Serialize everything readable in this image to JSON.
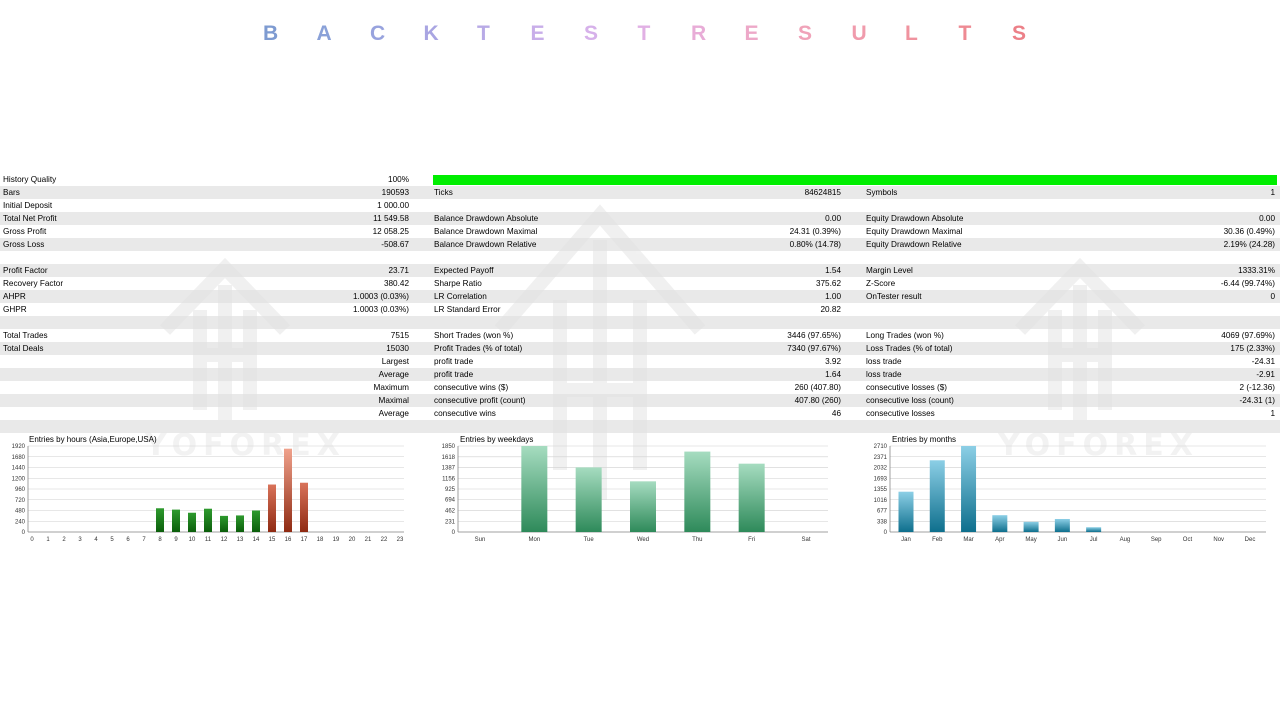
{
  "title": {
    "letters": [
      "B",
      "A",
      "C",
      "K",
      "T",
      "E",
      "S",
      "T",
      "R",
      "E",
      "S",
      "U",
      "L",
      "T",
      "S"
    ],
    "colors": [
      "#7e9bd1",
      "#8aa1d8",
      "#98a3de",
      "#a9a5e2",
      "#b8aae6",
      "#c8aee9",
      "#d6b1ea",
      "#e1b0e4",
      "#e8acd7",
      "#eda8c8",
      "#f0a3b9",
      "#f09bac",
      "#f0939f",
      "#ee8a93",
      "#ec8088"
    ]
  },
  "watermark": {
    "text": "YOFOREX"
  },
  "history_quality": {
    "label": "History Quality",
    "value": "100%",
    "level": 1.0,
    "bar_color": "#00ee00"
  },
  "report": {
    "rows": [
      {
        "shade": true,
        "c1": "Bars",
        "v1": "190593",
        "c2": "Ticks",
        "v2": "84624815",
        "c3": "Symbols",
        "v3": "1"
      },
      {
        "shade": false,
        "c1": "Initial Deposit",
        "v1": "1 000.00",
        "c2": "",
        "v2": "",
        "c3": "",
        "v3": ""
      },
      {
        "shade": true,
        "c1": "Total Net Profit",
        "v1": "11 549.58",
        "c2": "Balance Drawdown Absolute",
        "v2": "0.00",
        "c3": "Equity Drawdown Absolute",
        "v3": "0.00"
      },
      {
        "shade": false,
        "c1": "Gross Profit",
        "v1": "12 058.25",
        "c2": "Balance Drawdown Maximal",
        "v2": "24.31 (0.39%)",
        "c3": "Equity Drawdown Maximal",
        "v3": "30.36 (0.49%)"
      },
      {
        "shade": true,
        "c1": "Gross Loss",
        "v1": "-508.67",
        "c2": "Balance Drawdown Relative",
        "v2": "0.80% (14.78)",
        "c3": "Equity Drawdown Relative",
        "v3": "2.19% (24.28)"
      },
      {
        "shade": false,
        "c1": "",
        "v1": "",
        "c2": "",
        "v2": "",
        "c3": "",
        "v3": ""
      },
      {
        "shade": true,
        "c1": "Profit Factor",
        "v1": "23.71",
        "c2": "Expected Payoff",
        "v2": "1.54",
        "c3": "Margin Level",
        "v3": "1333.31%"
      },
      {
        "shade": false,
        "c1": "Recovery Factor",
        "v1": "380.42",
        "c2": "Sharpe Ratio",
        "v2": "375.62",
        "c3": "Z-Score",
        "v3": "-6.44 (99.74%)"
      },
      {
        "shade": true,
        "c1": "AHPR",
        "v1": "1.0003 (0.03%)",
        "c2": "LR Correlation",
        "v2": "1.00",
        "c3": "OnTester result",
        "v3": "0"
      },
      {
        "shade": false,
        "c1": "GHPR",
        "v1": "1.0003 (0.03%)",
        "c2": "LR Standard Error",
        "v2": "20.82",
        "c3": "",
        "v3": ""
      },
      {
        "shade": true,
        "c1": "",
        "v1": "",
        "c2": "",
        "v2": "",
        "c3": "",
        "v3": ""
      },
      {
        "shade": false,
        "c1": "Total Trades",
        "v1": "7515",
        "c2": "Short Trades (won %)",
        "v2": "3446 (97.65%)",
        "c3": "Long Trades (won %)",
        "v3": "4069 (97.69%)"
      },
      {
        "shade": true,
        "c1": "Total Deals",
        "v1": "15030",
        "c2": "Profit Trades (% of total)",
        "v2": "7340 (97.67%)",
        "c3": "Loss Trades (% of total)",
        "v3": "175 (2.33%)"
      },
      {
        "shade": false,
        "c1r": "Largest",
        "v1": "",
        "c2": "profit trade",
        "v2": "3.92",
        "c3": "loss trade",
        "v3": "-24.31"
      },
      {
        "shade": true,
        "c1r": "Average",
        "v1": "",
        "c2": "profit trade",
        "v2": "1.64",
        "c3": "loss trade",
        "v3": "-2.91"
      },
      {
        "shade": false,
        "c1r": "Maximum",
        "v1": "",
        "c2": "consecutive wins ($)",
        "v2": "260 (407.80)",
        "c3": "consecutive losses ($)",
        "v3": "2 (-12.36)"
      },
      {
        "shade": true,
        "c1r": "Maximal",
        "v1": "",
        "c2": "consecutive profit (count)",
        "v2": "407.80 (260)",
        "c3": "consecutive loss (count)",
        "v3": "-24.31 (1)"
      },
      {
        "shade": false,
        "c1r": "Average",
        "v1": "",
        "c2": "consecutive wins",
        "v2": "46",
        "c3": "consecutive losses",
        "v3": "1"
      },
      {
        "shade": true,
        "c1": "",
        "v1": "",
        "c2": "",
        "v2": "",
        "c3": "",
        "v3": ""
      }
    ]
  },
  "chart_data": [
    {
      "type": "bar",
      "title": "Entries by hours (Asia,Europe,USA)",
      "categories": [
        "0",
        "1",
        "2",
        "3",
        "4",
        "5",
        "6",
        "7",
        "8",
        "9",
        "10",
        "11",
        "12",
        "13",
        "14",
        "15",
        "16",
        "17",
        "18",
        "19",
        "20",
        "21",
        "22",
        "23"
      ],
      "values": [
        0,
        0,
        0,
        0,
        0,
        0,
        0,
        0,
        530,
        500,
        430,
        520,
        360,
        370,
        480,
        1060,
        1860,
        1100,
        0,
        0,
        0,
        0,
        0,
        0
      ],
      "yticks": [
        "0",
        "240",
        "480",
        "720",
        "960",
        "1200",
        "1440",
        "1680",
        "1920"
      ],
      "ylim": [
        0,
        1920
      ],
      "colors": {
        "green_top": "#2e9a2e",
        "green_bottom": "#0b5e0b",
        "red_top": "#d9735a",
        "red_bottom": "#8f2a12",
        "red_peak": "#f0a28c"
      },
      "grid": true
    },
    {
      "type": "bar",
      "title": "Entries by weekdays",
      "categories": [
        "Sun",
        "Mon",
        "Tue",
        "Wed",
        "Thu",
        "Fri",
        "Sat"
      ],
      "values": [
        0,
        1850,
        1390,
        1090,
        1730,
        1470,
        0
      ],
      "yticks": [
        "0",
        "231",
        "462",
        "694",
        "925",
        "1156",
        "1387",
        "1618",
        "1850"
      ],
      "ylim": [
        0,
        1850
      ],
      "colors": {
        "top": "#a6dcc0",
        "bottom": "#2e8a5a"
      },
      "grid": true
    },
    {
      "type": "bar",
      "title": "Entries by months",
      "categories": [
        "Jan",
        "Feb",
        "Mar",
        "Apr",
        "May",
        "Jun",
        "Jul",
        "Aug",
        "Sep",
        "Oct",
        "Nov",
        "Dec"
      ],
      "values": [
        1270,
        2260,
        2710,
        530,
        320,
        410,
        150,
        0,
        0,
        0,
        0,
        0
      ],
      "yticks": [
        "0",
        "338",
        "677",
        "1016",
        "1355",
        "1693",
        "2032",
        "2371",
        "2710"
      ],
      "ylim": [
        0,
        2710
      ],
      "colors": {
        "top": "#8ccfe6",
        "bottom": "#0e6f8d"
      },
      "grid": true
    }
  ]
}
